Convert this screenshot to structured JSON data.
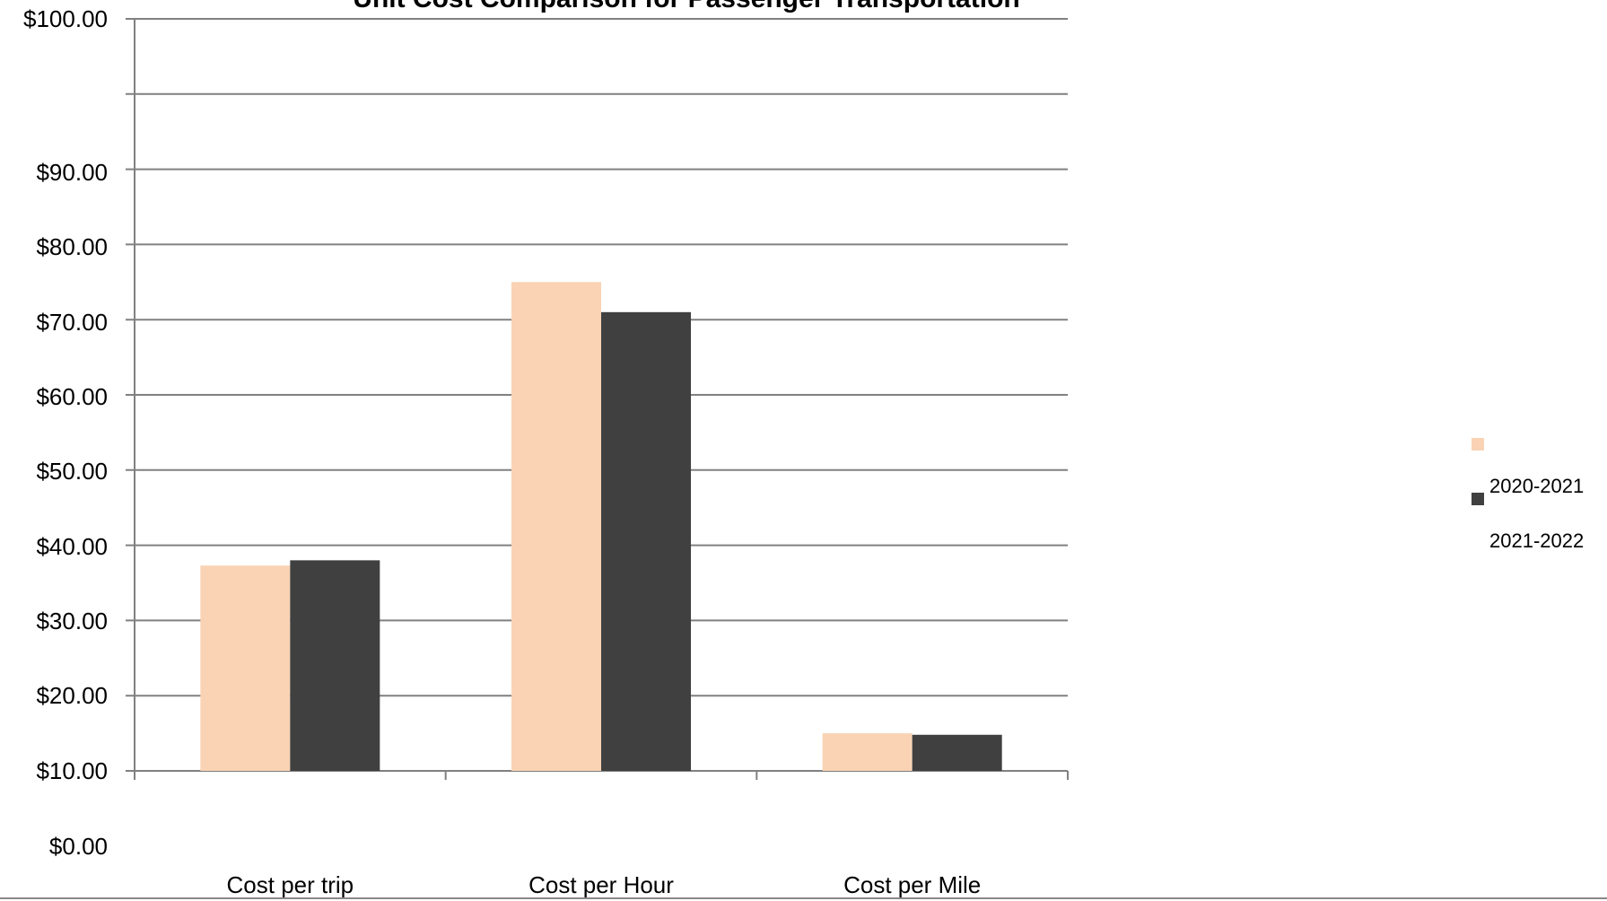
{
  "chart_data": {
    "type": "bar",
    "title": "Unit Cost Comparison for Passenger Transportation",
    "xlabel": "",
    "ylabel": "",
    "ylim": [
      0,
      100
    ],
    "y_ticks": [
      "$0.00",
      "$10.00",
      "$20.00",
      "$30.00",
      "$40.00",
      "$50.00",
      "$60.00",
      "$70.00",
      "$80.00",
      "$90.00",
      "$100.00"
    ],
    "categories": [
      "Cost per trip",
      "Cost per Hour",
      "Cost per Mile"
    ],
    "series": [
      {
        "name": "2020-2021",
        "values": [
          27.3,
          65.0,
          5.0
        ],
        "color": "#f9d3b4"
      },
      {
        "name": "2021-2022",
        "values": [
          28.0,
          61.0,
          4.8
        ],
        "color": "#404040"
      }
    ],
    "legend_position": "right",
    "grid": true
  }
}
